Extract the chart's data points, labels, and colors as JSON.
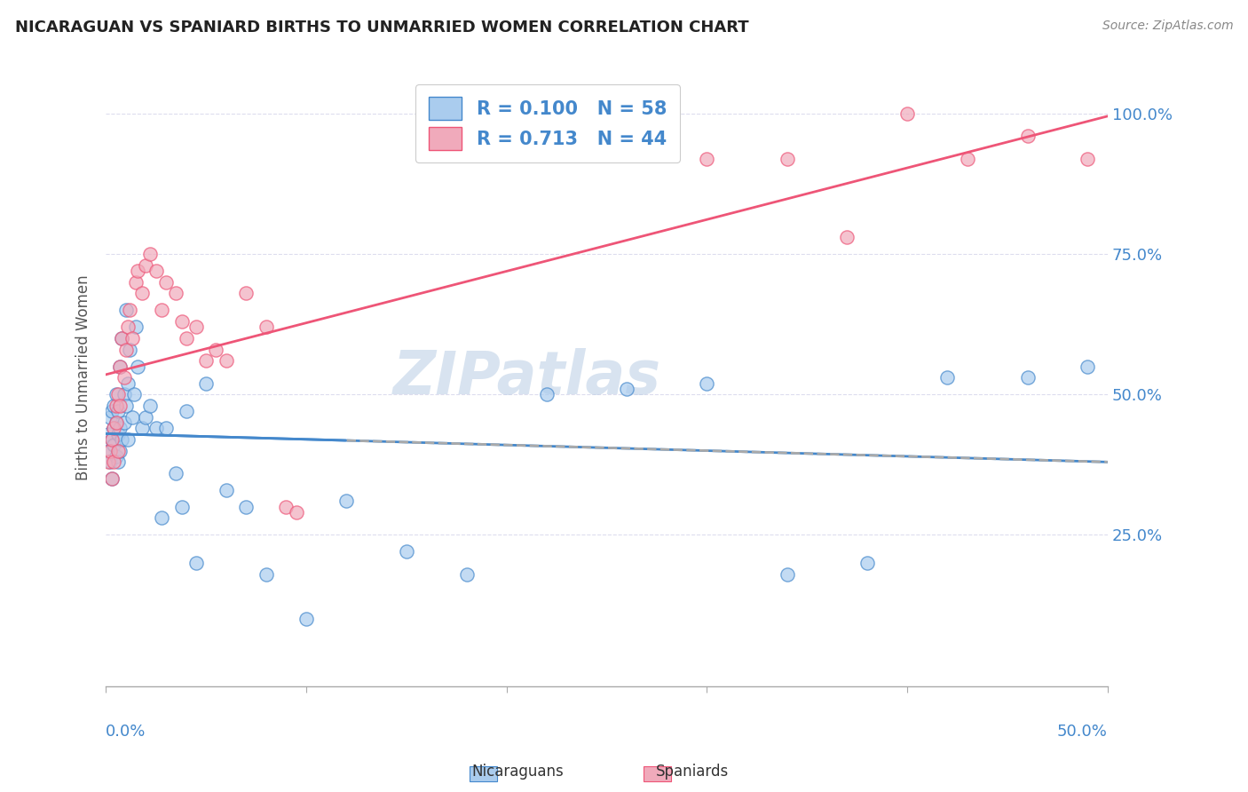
{
  "title": "NICARAGUAN VS SPANIARD BIRTHS TO UNMARRIED WOMEN CORRELATION CHART",
  "source": "Source: ZipAtlas.com",
  "ylabel": "Births to Unmarried Women",
  "ytick_labels": [
    "100.0%",
    "75.0%",
    "50.0%",
    "25.0%"
  ],
  "ytick_values": [
    1.0,
    0.75,
    0.5,
    0.25
  ],
  "xlim": [
    0.0,
    0.5
  ],
  "ylim": [
    -0.02,
    1.08
  ],
  "nicaraguan_color": "#aaccee",
  "spaniard_color": "#f0aabb",
  "trend_nicaraguan_color": "#4488cc",
  "trend_spaniard_color": "#ee5577",
  "nicaraguan_x": [
    0.001,
    0.001,
    0.002,
    0.002,
    0.003,
    0.003,
    0.003,
    0.004,
    0.004,
    0.004,
    0.005,
    0.005,
    0.005,
    0.006,
    0.006,
    0.006,
    0.007,
    0.007,
    0.007,
    0.008,
    0.008,
    0.009,
    0.009,
    0.01,
    0.01,
    0.011,
    0.011,
    0.012,
    0.013,
    0.014,
    0.015,
    0.016,
    0.018,
    0.02,
    0.022,
    0.025,
    0.028,
    0.03,
    0.035,
    0.038,
    0.04,
    0.045,
    0.05,
    0.06,
    0.07,
    0.08,
    0.1,
    0.12,
    0.15,
    0.18,
    0.22,
    0.26,
    0.3,
    0.34,
    0.38,
    0.42,
    0.46,
    0.49
  ],
  "nicaraguan_y": [
    0.4,
    0.43,
    0.38,
    0.46,
    0.42,
    0.47,
    0.35,
    0.41,
    0.44,
    0.48,
    0.39,
    0.45,
    0.5,
    0.43,
    0.47,
    0.38,
    0.44,
    0.4,
    0.55,
    0.42,
    0.6,
    0.5,
    0.45,
    0.65,
    0.48,
    0.52,
    0.42,
    0.58,
    0.46,
    0.5,
    0.62,
    0.55,
    0.44,
    0.46,
    0.48,
    0.44,
    0.28,
    0.44,
    0.36,
    0.3,
    0.47,
    0.2,
    0.52,
    0.33,
    0.3,
    0.18,
    0.1,
    0.31,
    0.22,
    0.18,
    0.5,
    0.51,
    0.52,
    0.18,
    0.2,
    0.53,
    0.53,
    0.55
  ],
  "spaniard_x": [
    0.001,
    0.002,
    0.003,
    0.003,
    0.004,
    0.004,
    0.005,
    0.005,
    0.006,
    0.006,
    0.007,
    0.007,
    0.008,
    0.009,
    0.01,
    0.011,
    0.012,
    0.013,
    0.015,
    0.016,
    0.018,
    0.02,
    0.022,
    0.025,
    0.028,
    0.03,
    0.035,
    0.038,
    0.04,
    0.045,
    0.05,
    0.055,
    0.06,
    0.07,
    0.08,
    0.09,
    0.095,
    0.3,
    0.34,
    0.37,
    0.4,
    0.43,
    0.46,
    0.49
  ],
  "spaniard_y": [
    0.38,
    0.4,
    0.35,
    0.42,
    0.44,
    0.38,
    0.45,
    0.48,
    0.5,
    0.4,
    0.55,
    0.48,
    0.6,
    0.53,
    0.58,
    0.62,
    0.65,
    0.6,
    0.7,
    0.72,
    0.68,
    0.73,
    0.75,
    0.72,
    0.65,
    0.7,
    0.68,
    0.63,
    0.6,
    0.62,
    0.56,
    0.58,
    0.56,
    0.68,
    0.62,
    0.3,
    0.29,
    0.92,
    0.92,
    0.78,
    1.0,
    0.92,
    0.96,
    0.92
  ],
  "watermark": "ZIPatlas",
  "background_color": "#ffffff",
  "grid_color": "#ddddee"
}
